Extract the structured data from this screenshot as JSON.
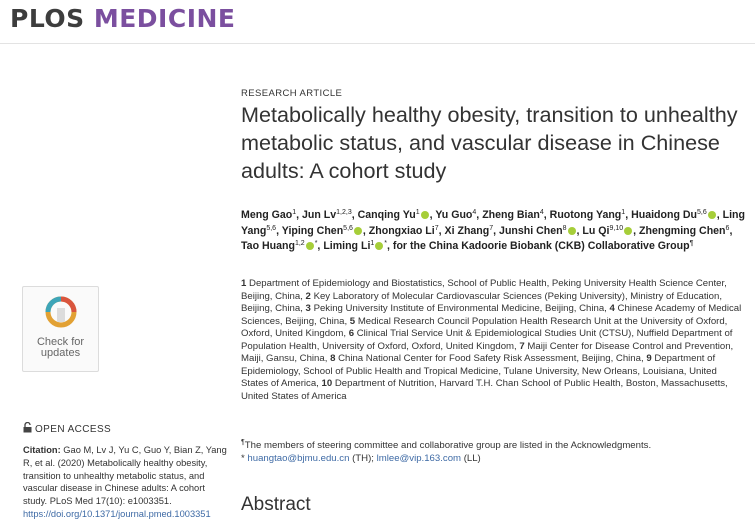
{
  "journal": {
    "name_part1": "PLOS",
    "name_part2": "MEDICINE"
  },
  "colors": {
    "accent_purple": "#7b4f9f",
    "orcid_green": "#a6ce39",
    "link_blue": "#3e6aa5"
  },
  "article": {
    "type_label": "RESEARCH ARTICLE",
    "title": "Metabolically healthy obesity, transition to unhealthy metabolic status, and vascular disease in Chinese adults: A cohort study"
  },
  "authors": [
    {
      "name": "Meng Gao",
      "sup": "1"
    },
    {
      "name": "Jun Lv",
      "sup": "1,2,3"
    },
    {
      "name": "Canqing Yu",
      "sup": "1",
      "orcid": true
    },
    {
      "name": "Yu Guo",
      "sup": "4"
    },
    {
      "name": "Zheng Bian",
      "sup": "4"
    },
    {
      "name": "Ruotong Yang",
      "sup": "1"
    },
    {
      "name": "Huaidong Du",
      "sup": "5,6",
      "orcid": true
    },
    {
      "name": "Ling Yang",
      "sup": "5,6"
    },
    {
      "name": "Yiping Chen",
      "sup": "5,6",
      "orcid": true
    },
    {
      "name": "Zhongxiao Li",
      "sup": "7"
    },
    {
      "name": "Xi Zhang",
      "sup": "7"
    },
    {
      "name": "Junshi Chen",
      "sup": "8",
      "orcid": true
    },
    {
      "name": "Lu Qi",
      "sup": "9,10",
      "orcid": true
    },
    {
      "name": "Zhengming Chen",
      "sup": "6"
    },
    {
      "name": "Tao Huang",
      "sup": "1,2",
      "orcid": true,
      "star": "*"
    },
    {
      "name": "Liming Li",
      "sup": "1",
      "orcid": true,
      "star": "*"
    }
  ],
  "authors_tail": {
    "text": "for the China Kadoorie Biobank (CKB) Collaborative Group",
    "sup": "¶"
  },
  "affiliations": [
    {
      "num": "1",
      "text": "Department of Epidemiology and Biostatistics, School of Public Health, Peking University Health Science Center, Beijing, China,"
    },
    {
      "num": "2",
      "text": "Key Laboratory of Molecular Cardiovascular Sciences (Peking University), Ministry of Education, Beijing, China,"
    },
    {
      "num": "3",
      "text": "Peking University Institute of Environmental Medicine, Beijing, China,"
    },
    {
      "num": "4",
      "text": "Chinese Academy of Medical Sciences, Beijing, China,"
    },
    {
      "num": "5",
      "text": "Medical Research Council Population Health Research Unit at the University of Oxford, Oxford, United Kingdom,"
    },
    {
      "num": "6",
      "text": "Clinical Trial Service Unit & Epidemiological Studies Unit (CTSU), Nuffield Department of Population Health, University of Oxford, Oxford, United Kingdom,"
    },
    {
      "num": "7",
      "text": "Maiji Center for Disease Control and Prevention, Maiji, Gansu, China,"
    },
    {
      "num": "8",
      "text": "China National Center for Food Safety Risk Assessment, Beijing, China,"
    },
    {
      "num": "9",
      "text": "Department of Epidemiology, School of Public Health and Tropical Medicine, Tulane University, New Orleans, Louisiana, United States of America,"
    },
    {
      "num": "10",
      "text": "Department of Nutrition, Harvard T.H. Chan School of Public Health, Boston, Massachusetts, United States of America"
    }
  ],
  "notes": {
    "group_symbol": "¶",
    "group_note": "The members of steering committee and collaborative group are listed in the Acknowledgments.",
    "corr_symbol": "*",
    "email1": "huangtao@bjmu.edu.cn",
    "email1_suffix": "(TH);",
    "email2": "lmlee@vip.163.com",
    "email2_suffix": "(LL)"
  },
  "sidebar": {
    "check_line1": "Check for",
    "check_line2": "updates",
    "open_access": "OPEN ACCESS",
    "citation_label": "Citation:",
    "citation_text": "Gao M, Lv J, Yu C, Guo Y, Bian Z, Yang R, et al. (2020) Metabolically healthy obesity, transition to unhealthy metabolic status, and vascular disease in Chinese adults: A cohort study. PLoS Med 17(10): e1003351.",
    "citation_doi": "https://doi.org/10.1371/journal.pmed.1003351"
  },
  "section": {
    "abstract_heading": "Abstract"
  }
}
